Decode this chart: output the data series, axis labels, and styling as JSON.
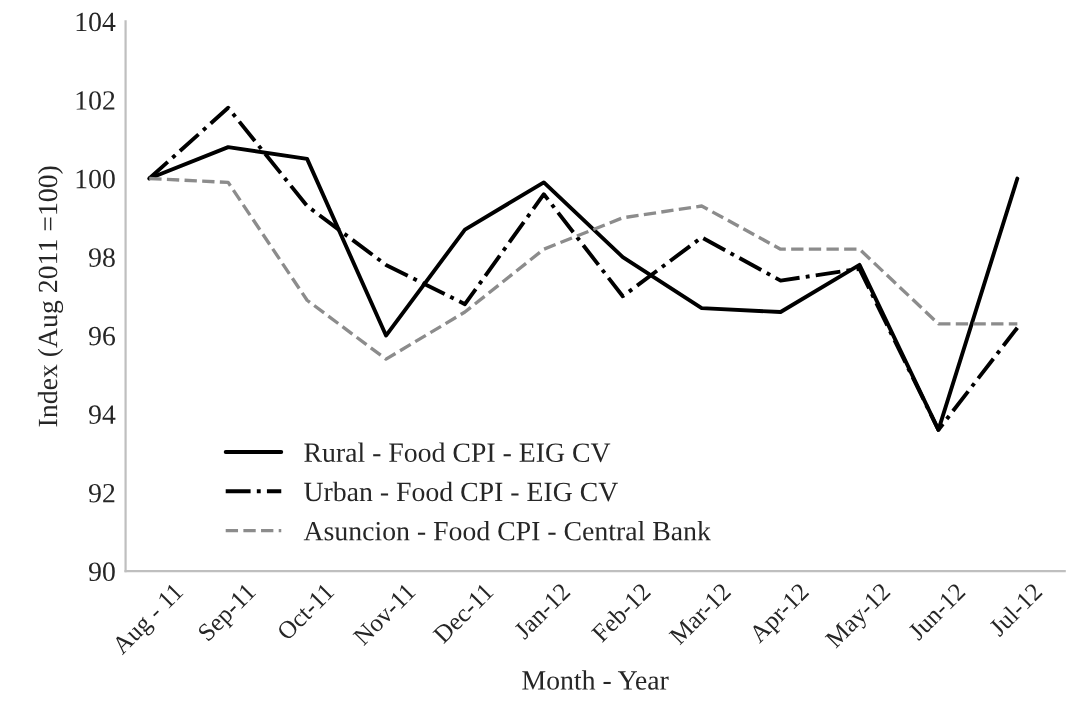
{
  "chart_data": {
    "type": "line",
    "xlabel": "Month - Year",
    "ylabel": "Index (Aug 2011 =100)",
    "categories": [
      "Aug - 11",
      "Sep-11",
      "Oct-11",
      "Nov-11",
      "Dec-11",
      "Jan-12",
      "Feb-12",
      "Mar-12",
      "Apr-12",
      "May-12",
      "Jun-12",
      "Jul-12"
    ],
    "ylim": [
      90,
      104
    ],
    "yticks": [
      90,
      92,
      94,
      96,
      98,
      100,
      102,
      104
    ],
    "grid": false,
    "legend": "bottom left",
    "marker": "none",
    "series": [
      {
        "name": "Rural - Food CPI - EIG CV",
        "color": "#000000",
        "line_style": "solid",
        "values": [
          100,
          100.8,
          100.5,
          96.0,
          98.7,
          99.9,
          98.0,
          96.7,
          96.6,
          97.8,
          93.6,
          100
        ]
      },
      {
        "name": "Urban - Food CPI - EIG CV",
        "color": "#000000",
        "line_style": "dashdot",
        "values": [
          100,
          101.8,
          99.3,
          97.8,
          96.8,
          99.6,
          97.0,
          98.5,
          97.4,
          97.7,
          93.6,
          96.2
        ]
      },
      {
        "name": "Asuncion - Food CPI - Central Bank",
        "color": "#8c8c8c",
        "line_style": "dashed",
        "values": [
          100,
          99.9,
          96.9,
          95.4,
          96.6,
          98.2,
          99.0,
          99.3,
          98.2,
          98.2,
          96.3,
          96.3
        ]
      }
    ]
  }
}
